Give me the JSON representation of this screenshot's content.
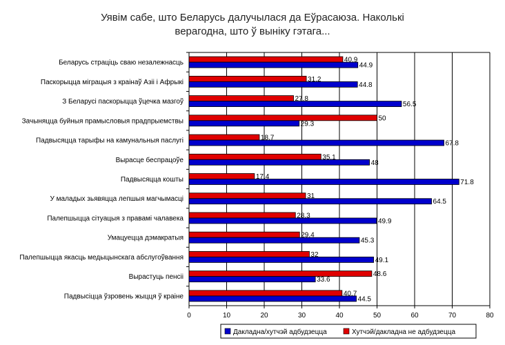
{
  "chart_data": {
    "type": "bar",
    "orientation": "horizontal",
    "title_lines": [
      "Уявім сабе, што Беларусь далучылася да Еўрасаюза. Наколькі",
      "верагодна, што ў выніку гэтага..."
    ],
    "categories": [
      "Беларусь страціць сваю незалежнасць",
      "Паскорыцца міграцыя з краінаў Азіі і Афрыкі",
      "З Беларусі паскорыцца ўцечка мазгоў",
      "Зачыняцца буйныя прамысловыя прадпрыемствы",
      "Падвысяцца тарыфы на камунальныя паслугі",
      "Вырасце беспрацоўе",
      "Падвысяцца кошты",
      "У маладых зьявяцца лепшыя магчымасці",
      "Палепшыцца сітуацыя з правамі чалавека",
      "Умацуецца дэмакратыя",
      "Палепшыцца якасць медыцынскага абслугоўвання",
      "Вырастуць пенсіі",
      "Падвысіцца ўзровень жыцця ў краіне"
    ],
    "series": [
      {
        "name": "Хутчэй/дакладна не адбудзецца",
        "color": "#e00000",
        "values": [
          40.9,
          31.2,
          27.8,
          50,
          18.7,
          35.1,
          17.4,
          31,
          28.3,
          29.4,
          32,
          48.6,
          40.7
        ]
      },
      {
        "name": "Дакладна/хутчэй адбудзецца",
        "color": "#0000cc",
        "values": [
          44.9,
          44.8,
          56.5,
          29.3,
          67.8,
          48,
          71.8,
          64.5,
          49.9,
          45.3,
          49.1,
          33.6,
          44.5
        ]
      }
    ],
    "value_labels": [
      [
        "40.9",
        "44.9"
      ],
      [
        "31.2",
        "44.8"
      ],
      [
        "27.8",
        "56.5"
      ],
      [
        "50",
        "29.3"
      ],
      [
        "18.7",
        "67.8"
      ],
      [
        "35.1",
        "48"
      ],
      [
        "17.4",
        "71.8"
      ],
      [
        "31",
        "64.5"
      ],
      [
        "28.3",
        "49.9"
      ],
      [
        "29.4",
        "45.3"
      ],
      [
        "32",
        "49.1"
      ],
      [
        "48.6",
        "33.6"
      ],
      [
        "40.7",
        "44.5"
      ]
    ],
    "xlim": [
      0,
      80
    ],
    "xticks": [
      "0",
      "10",
      "20",
      "30",
      "40",
      "50",
      "60",
      "70",
      "80"
    ],
    "grid": "vertical",
    "legend": {
      "placement": "bottom",
      "entries": [
        {
          "label": "Дакладна/хутчэй адбудзецца",
          "color": "#0000cc"
        },
        {
          "label": "Хутчэй/дакладна не адбудзецца",
          "color": "#e00000"
        }
      ]
    }
  }
}
